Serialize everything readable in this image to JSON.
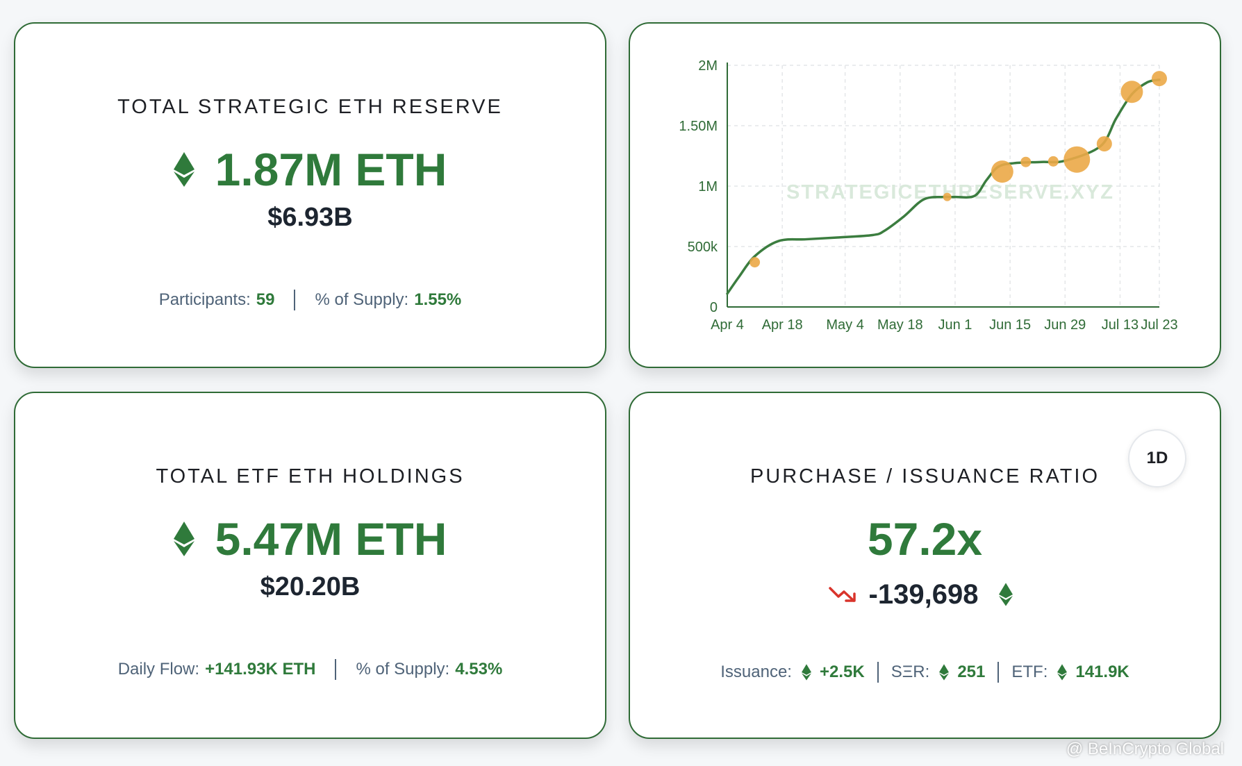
{
  "reserve": {
    "title": "TOTAL STRATEGIC ETH RESERVE",
    "amount": "1.87M ETH",
    "usd": "$6.93B",
    "participants_label": "Participants:",
    "participants_value": "59",
    "supply_label": "% of Supply:",
    "supply_value": "1.55%"
  },
  "etf": {
    "title": "TOTAL ETF ETH HOLDINGS",
    "amount": "5.47M ETH",
    "usd": "$20.20B",
    "flow_label": "Daily Flow:",
    "flow_value": "+141.93K ETH",
    "supply_label": "% of Supply:",
    "supply_value": "4.53%"
  },
  "ratio": {
    "period": "1D",
    "title": "PURCHASE / ISSUANCE RATIO",
    "value": "57.2x",
    "change": "-139,698",
    "issuance_label": "Issuance:",
    "issuance_value": "+2.5K",
    "ser_label": "SΞR:",
    "ser_value": "251",
    "etf_label": "ETF:",
    "etf_value": "141.9K"
  },
  "chart_data": {
    "type": "line",
    "x": [
      "Apr 4",
      "Apr 18",
      "May 4",
      "May 18",
      "Jun 1",
      "Jun 15",
      "Jun 29",
      "Jul 13",
      "Jul 23"
    ],
    "y_ticks": [
      "0",
      "500k",
      "1M",
      "1.50M",
      "2M"
    ],
    "ylim": [
      0,
      2000000
    ],
    "watermark": "STRATEGICETHRESERVE.XYZ",
    "line_points": [
      {
        "d": 0,
        "v": 110000
      },
      {
        "d": 3,
        "v": 250000
      },
      {
        "d": 7,
        "v": 420000
      },
      {
        "d": 13,
        "v": 545000
      },
      {
        "d": 20,
        "v": 560000
      },
      {
        "d": 28,
        "v": 575000
      },
      {
        "d": 37,
        "v": 595000
      },
      {
        "d": 40,
        "v": 630000
      },
      {
        "d": 45,
        "v": 750000
      },
      {
        "d": 50,
        "v": 890000
      },
      {
        "d": 55,
        "v": 910000
      },
      {
        "d": 58,
        "v": 910000
      },
      {
        "d": 63,
        "v": 920000
      },
      {
        "d": 66,
        "v": 1050000
      },
      {
        "d": 69,
        "v": 1160000
      },
      {
        "d": 73,
        "v": 1190000
      },
      {
        "d": 80,
        "v": 1200000
      },
      {
        "d": 86,
        "v": 1210000
      },
      {
        "d": 95,
        "v": 1330000
      },
      {
        "d": 99,
        "v": 1560000
      },
      {
        "d": 103,
        "v": 1760000
      },
      {
        "d": 107,
        "v": 1860000
      },
      {
        "d": 110,
        "v": 1880000
      }
    ],
    "bubbles": [
      {
        "d": 7,
        "v": 370000,
        "size": "small"
      },
      {
        "d": 56,
        "v": 910000,
        "size": "tiny"
      },
      {
        "d": 70,
        "v": 1120000,
        "size": "large"
      },
      {
        "d": 76,
        "v": 1200000,
        "size": "small"
      },
      {
        "d": 83,
        "v": 1205000,
        "size": "small"
      },
      {
        "d": 89,
        "v": 1220000,
        "size": "xlarge"
      },
      {
        "d": 96,
        "v": 1350000,
        "size": "medium"
      },
      {
        "d": 103,
        "v": 1780000,
        "size": "large"
      },
      {
        "d": 110,
        "v": 1890000,
        "size": "medium"
      }
    ],
    "x_day_offsets": [
      0,
      14,
      30,
      44,
      58,
      72,
      86,
      100,
      110
    ],
    "line_color": "#3b7d3f",
    "bubble_color": "#eba847"
  },
  "credit": "@ BeInCrypto Global",
  "colors": {
    "accent_green": "#2f7a3b",
    "card_border": "#2f6b36",
    "down_red": "#d9342b"
  }
}
